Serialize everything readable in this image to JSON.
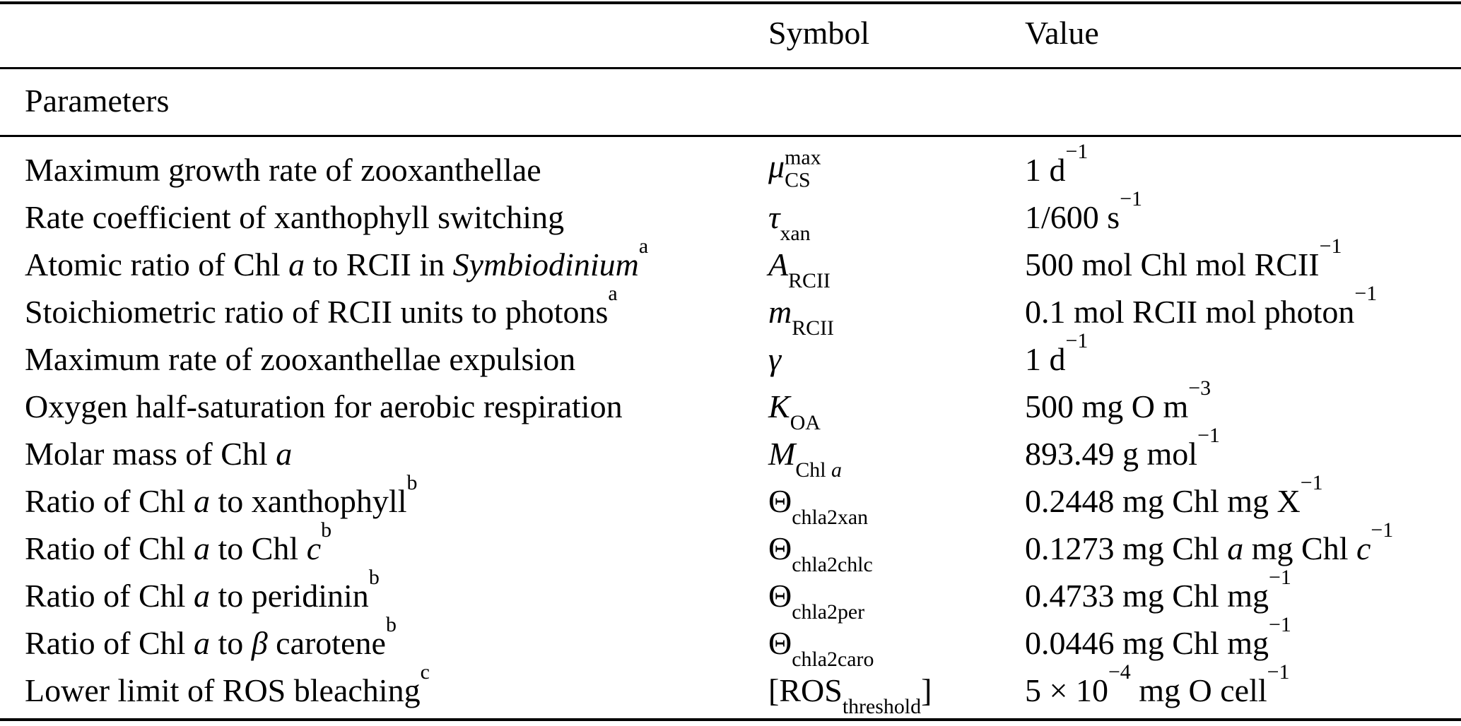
{
  "colors": {
    "text": "#000000",
    "background": "#ffffff",
    "rule": "#000000"
  },
  "table": {
    "columns": {
      "symbol": "Symbol",
      "value": "Value"
    },
    "section": "Parameters",
    "rows": [
      {
        "description": [
          {
            "t": "Maximum growth rate of zooxanthellae"
          }
        ],
        "symbol": [
          {
            "t": "μ",
            "i": true
          },
          {
            "stack": true,
            "sup": "max",
            "sub": "CS"
          }
        ],
        "value": [
          {
            "t": "1 d"
          },
          {
            "t": "−1",
            "sup": true
          }
        ]
      },
      {
        "description": [
          {
            "t": "Rate coefficient of xanthophyll switching"
          }
        ],
        "symbol": [
          {
            "t": "τ",
            "i": true
          },
          {
            "t": "xan",
            "sub": true
          }
        ],
        "value": [
          {
            "t": "1/600 s"
          },
          {
            "t": "−1",
            "sup": true
          }
        ]
      },
      {
        "description": [
          {
            "t": "Atomic ratio of Chl "
          },
          {
            "t": "a",
            "i": true
          },
          {
            "t": " to RCII in "
          },
          {
            "t": "Symbiodinium",
            "i": true
          },
          {
            "t": "a",
            "sup": true
          }
        ],
        "symbol": [
          {
            "t": "A",
            "i": true
          },
          {
            "t": "RCII",
            "sub": true
          }
        ],
        "value": [
          {
            "t": "500 mol Chl mol RCII"
          },
          {
            "t": "−1",
            "sup": true
          }
        ]
      },
      {
        "description": [
          {
            "t": "Stoichiometric ratio of RCII units to photons"
          },
          {
            "t": "a",
            "sup": true
          }
        ],
        "symbol": [
          {
            "t": "m",
            "i": true
          },
          {
            "t": "RCII",
            "sub": true
          }
        ],
        "value": [
          {
            "t": "0.1 mol RCII mol photon"
          },
          {
            "t": "−1",
            "sup": true
          }
        ]
      },
      {
        "description": [
          {
            "t": "Maximum rate of zooxanthellae expulsion"
          }
        ],
        "symbol": [
          {
            "t": "γ",
            "i": true
          }
        ],
        "value": [
          {
            "t": "1 d"
          },
          {
            "t": "−1",
            "sup": true
          }
        ]
      },
      {
        "description": [
          {
            "t": "Oxygen half-saturation for aerobic respiration"
          }
        ],
        "symbol": [
          {
            "t": "K",
            "i": true
          },
          {
            "t": "OA",
            "sub": true
          }
        ],
        "value": [
          {
            "t": "500 mg O m"
          },
          {
            "t": "−3",
            "sup": true
          }
        ]
      },
      {
        "description": [
          {
            "t": "Molar mass of Chl "
          },
          {
            "t": "a",
            "i": true
          }
        ],
        "symbol": [
          {
            "t": "M",
            "i": true
          },
          {
            "t": "Chl ",
            "sub": true
          },
          {
            "t": "a",
            "sub": true,
            "i": true
          }
        ],
        "value": [
          {
            "t": "893.49 g mol"
          },
          {
            "t": "−1",
            "sup": true
          }
        ]
      },
      {
        "description": [
          {
            "t": "Ratio of Chl "
          },
          {
            "t": "a",
            "i": true
          },
          {
            "t": " to xanthophyll"
          },
          {
            "t": "b",
            "sup": true
          }
        ],
        "symbol": [
          {
            "t": "Θ"
          },
          {
            "t": "chla2xan",
            "sub": true
          }
        ],
        "value": [
          {
            "t": "0.2448 mg Chl mg X"
          },
          {
            "t": "−1",
            "sup": true
          }
        ]
      },
      {
        "description": [
          {
            "t": "Ratio of Chl "
          },
          {
            "t": "a",
            "i": true
          },
          {
            "t": " to Chl "
          },
          {
            "t": "c",
            "i": true
          },
          {
            "t": "b",
            "sup": true
          }
        ],
        "symbol": [
          {
            "t": "Θ"
          },
          {
            "t": "chla2chlc",
            "sub": true
          }
        ],
        "value": [
          {
            "t": "0.1273 mg Chl "
          },
          {
            "t": "a",
            "i": true
          },
          {
            "t": " mg Chl "
          },
          {
            "t": "c",
            "i": true
          },
          {
            "t": "−1",
            "sup": true
          }
        ]
      },
      {
        "description": [
          {
            "t": "Ratio of Chl "
          },
          {
            "t": "a",
            "i": true
          },
          {
            "t": " to peridinin"
          },
          {
            "t": "b",
            "sup": true
          }
        ],
        "symbol": [
          {
            "t": "Θ"
          },
          {
            "t": "chla2per",
            "sub": true
          }
        ],
        "value": [
          {
            "t": "0.4733 mg Chl mg"
          },
          {
            "t": "−1",
            "sup": true
          }
        ]
      },
      {
        "description": [
          {
            "t": "Ratio of Chl "
          },
          {
            "t": "a",
            "i": true
          },
          {
            "t": " to "
          },
          {
            "t": "β",
            "i": true
          },
          {
            "t": " carotene"
          },
          {
            "t": "b",
            "sup": true
          }
        ],
        "symbol": [
          {
            "t": "Θ"
          },
          {
            "t": "chla2caro",
            "sub": true
          }
        ],
        "value": [
          {
            "t": "0.0446 mg Chl mg"
          },
          {
            "t": "−1",
            "sup": true
          }
        ]
      },
      {
        "description": [
          {
            "t": "Lower limit of ROS bleaching"
          },
          {
            "t": "c",
            "sup": true
          }
        ],
        "symbol": [
          {
            "t": "[ROS"
          },
          {
            "t": "threshold",
            "sub": true
          },
          {
            "t": "]"
          }
        ],
        "value": [
          {
            "t": "5 × 10"
          },
          {
            "t": "−4",
            "sup": true
          },
          {
            "t": " mg O cell"
          },
          {
            "t": "−1",
            "sup": true
          }
        ]
      }
    ]
  }
}
